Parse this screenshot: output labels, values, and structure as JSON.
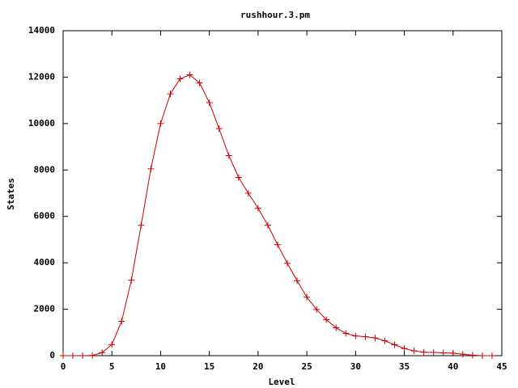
{
  "chart_data": {
    "type": "line",
    "title": "rushhour.3.pm",
    "x_label": "Level",
    "y_label": "States",
    "x": [
      0,
      1,
      2,
      3,
      4,
      5,
      6,
      7,
      8,
      9,
      10,
      11,
      12,
      13,
      14,
      15,
      16,
      17,
      18,
      19,
      20,
      21,
      22,
      23,
      24,
      25,
      26,
      27,
      28,
      29,
      30,
      31,
      32,
      33,
      34,
      35,
      36,
      37,
      38,
      39,
      40,
      41,
      42,
      43,
      44
    ],
    "values": [
      0,
      0,
      0,
      10,
      130,
      480,
      1480,
      3250,
      5620,
      8050,
      10000,
      11280,
      11930,
      12100,
      11750,
      10900,
      9780,
      8620,
      7680,
      7000,
      6350,
      5620,
      4780,
      3980,
      3230,
      2520,
      1990,
      1550,
      1200,
      960,
      850,
      820,
      760,
      640,
      470,
      310,
      210,
      150,
      140,
      120,
      110,
      60,
      20,
      0,
      0
    ],
    "color": "#cc0000",
    "markers": true,
    "xlim": [
      0,
      45
    ],
    "xticks": [
      0,
      5,
      10,
      15,
      20,
      25,
      30,
      35,
      40,
      45
    ],
    "ylim": [
      0,
      14000
    ],
    "yticks": [
      0,
      2000,
      4000,
      6000,
      8000,
      10000,
      12000,
      14000
    ]
  }
}
